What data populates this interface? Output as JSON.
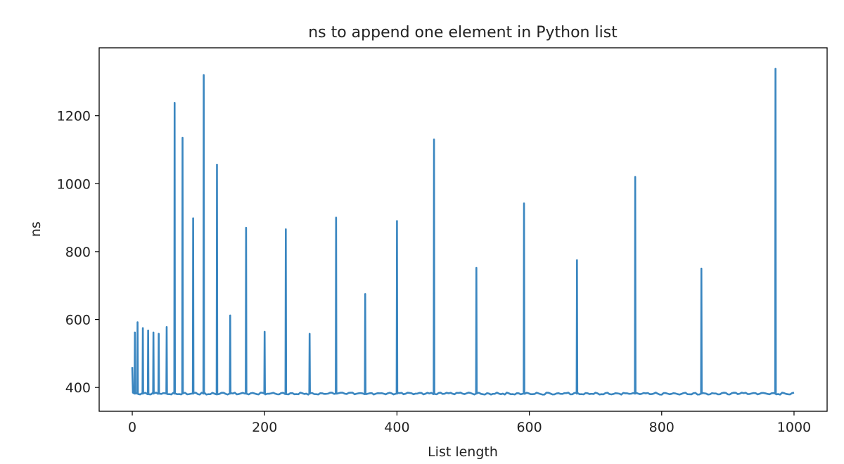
{
  "chart_data": {
    "type": "line",
    "title": "ns to append one element in Python list",
    "xlabel": "List length",
    "ylabel": "ns",
    "xlim": [
      -50,
      1050
    ],
    "ylim": [
      330,
      1400
    ],
    "xticks": [
      0,
      200,
      400,
      600,
      800,
      1000
    ],
    "yticks": [
      400,
      600,
      800,
      1000,
      1200
    ],
    "grid": false,
    "baseline": 382,
    "series": [
      {
        "color": "#3a86c0",
        "spikes": [
          {
            "x": 0,
            "y": 460
          },
          {
            "x": 4,
            "y": 562
          },
          {
            "x": 8,
            "y": 592
          },
          {
            "x": 16,
            "y": 575
          },
          {
            "x": 24,
            "y": 568
          },
          {
            "x": 32,
            "y": 562
          },
          {
            "x": 40,
            "y": 558
          },
          {
            "x": 52,
            "y": 578
          },
          {
            "x": 64,
            "y": 1238
          },
          {
            "x": 76,
            "y": 1135
          },
          {
            "x": 92,
            "y": 898
          },
          {
            "x": 108,
            "y": 1320
          },
          {
            "x": 128,
            "y": 1056
          },
          {
            "x": 148,
            "y": 612
          },
          {
            "x": 172,
            "y": 870
          },
          {
            "x": 200,
            "y": 564
          },
          {
            "x": 232,
            "y": 866
          },
          {
            "x": 268,
            "y": 558
          },
          {
            "x": 308,
            "y": 900
          },
          {
            "x": 352,
            "y": 675
          },
          {
            "x": 400,
            "y": 890
          },
          {
            "x": 456,
            "y": 1130
          },
          {
            "x": 520,
            "y": 752
          },
          {
            "x": 592,
            "y": 942
          },
          {
            "x": 672,
            "y": 775
          },
          {
            "x": 760,
            "y": 1020
          },
          {
            "x": 860,
            "y": 750
          },
          {
            "x": 972,
            "y": 1338
          }
        ],
        "x_end": 1000
      }
    ]
  }
}
